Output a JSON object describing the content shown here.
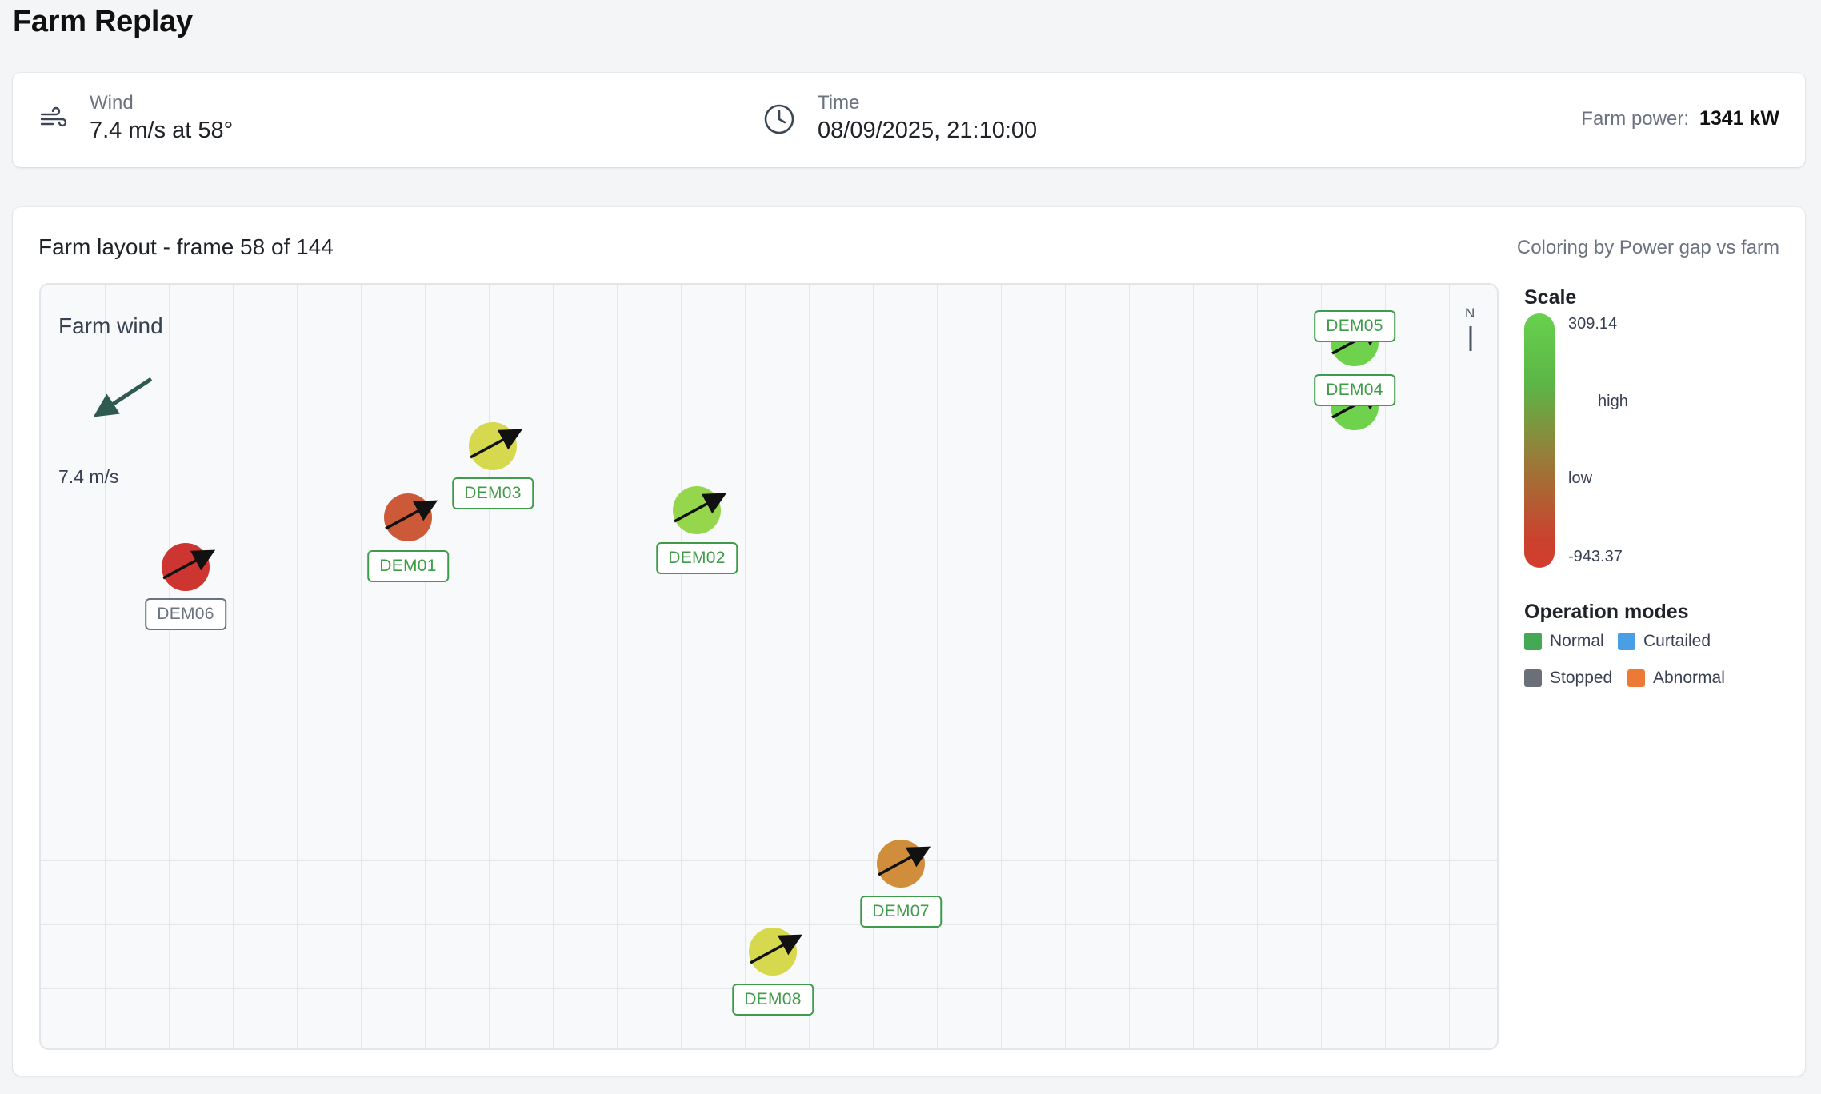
{
  "app": {
    "title": "Farm Replay"
  },
  "status": {
    "wind_label": "Wind",
    "wind_value": "7.4 m/s at 58°",
    "time_label": "Time",
    "time_value": "08/09/2025, 21:10:00",
    "power_label": "Farm power:",
    "power_value": "1341 kW"
  },
  "layout": {
    "title": "Farm layout - frame 58 of 144",
    "frame": 58,
    "frame_total": 144,
    "coloring_label": "Coloring by Power gap vs farm",
    "wind_panel_title": "Farm wind",
    "wind_panel_speed": "7.4 m/s",
    "north_label": "N"
  },
  "turbines": [
    {
      "id": "DEM01",
      "color": "#cc5a38",
      "mode": "Normal"
    },
    {
      "id": "DEM02",
      "color": "#96d64c",
      "mode": "Normal"
    },
    {
      "id": "DEM03",
      "color": "#d6d84e",
      "mode": "Normal"
    },
    {
      "id": "DEM04",
      "color": "#6fd24c",
      "mode": "Normal"
    },
    {
      "id": "DEM05",
      "color": "#6fd24c",
      "mode": "Normal"
    },
    {
      "id": "DEM06",
      "color": "#cc3530",
      "mode": "Stopped"
    },
    {
      "id": "DEM07",
      "color": "#d08d3c",
      "mode": "Normal"
    },
    {
      "id": "DEM08",
      "color": "#d6d84e",
      "mode": "Normal"
    }
  ],
  "scale": {
    "title": "Scale",
    "max": "309.14",
    "high": "high",
    "low": "low",
    "min": "-943.37"
  },
  "operation_modes": {
    "title": "Operation modes",
    "items": [
      {
        "label": "Normal",
        "color": "#44a854"
      },
      {
        "label": "Curtailed",
        "color": "#4a9ee6"
      },
      {
        "label": "Stopped",
        "color": "#6b7078"
      },
      {
        "label": "Abnormal",
        "color": "#ec7a36"
      }
    ]
  }
}
